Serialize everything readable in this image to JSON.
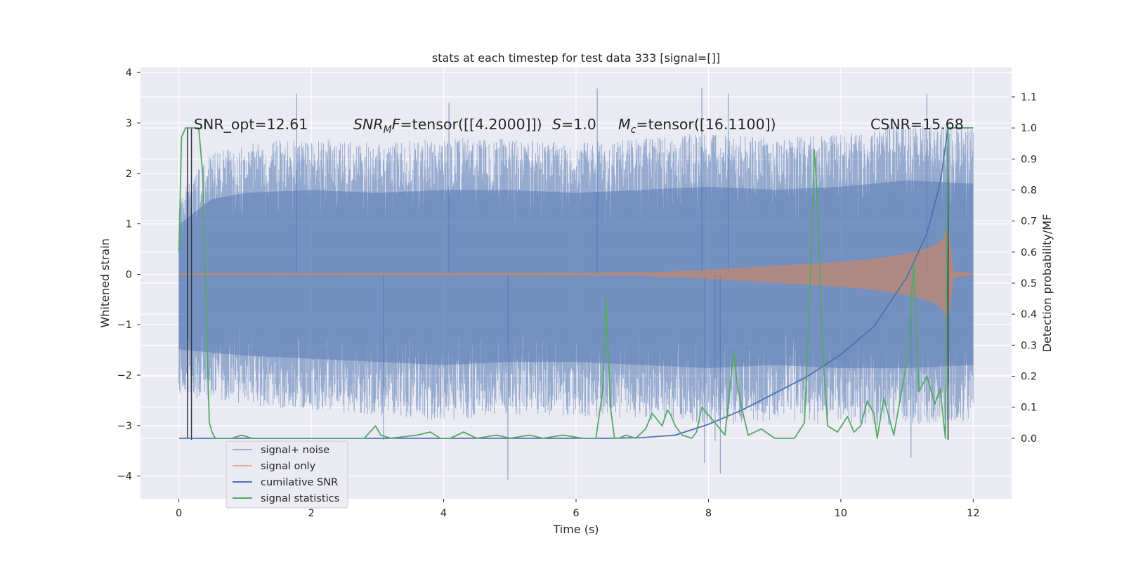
{
  "chart_data": {
    "type": "line",
    "title": "stats at each timestep for test data 333 [signal=[]]",
    "xlabel": "Time (s)",
    "ylabel_left": "Whitened strain",
    "ylabel_right": "Detection probability/MF",
    "xlim": [
      -0.58,
      12.58
    ],
    "ylim_left": [
      -4.45,
      4.1
    ],
    "ylim_right": [
      -0.195,
      1.195
    ],
    "x_ticks": [
      "0",
      "2",
      "4",
      "6",
      "8",
      "10",
      "12"
    ],
    "y_ticks_left": [
      "4",
      "3",
      "2",
      "1",
      "0",
      "−1",
      "−2",
      "−3",
      "−4"
    ],
    "y_ticks_right": [
      "1.1",
      "1.0",
      "0.9",
      "0.8",
      "0.7",
      "0.6",
      "0.5",
      "0.4",
      "0.3",
      "0.2",
      "0.1",
      "0.0"
    ],
    "grid": true,
    "legend_position": "lower-left",
    "annotations": {
      "snr_opt": "SNR_opt=12.61",
      "snr_mf": "SNRₘF=tensor([[4.2000]])",
      "snr_mf_prefix": "SNR",
      "snr_mf_sub": "M",
      "snr_mf_italic": "F",
      "snr_mf_rest": "=tensor([[4.2000]])",
      "s_italic": "S",
      "s_rest": "=1.0",
      "mc_italic": "M",
      "mc_sub": "c",
      "mc_rest": "=tensor([16.1100])",
      "csnr": "CSNR=15.68"
    },
    "series": [
      {
        "name": "signal+ noise",
        "color": "#4c72b0",
        "opacity": 0.5,
        "envelope": {
          "x": [
            0.0,
            0.5,
            1.0,
            2.0,
            3.0,
            4.0,
            5.0,
            6.0,
            7.0,
            8.0,
            9.0,
            10.0,
            11.0,
            12.0
          ],
          "upper": [
            1.6,
            2.4,
            2.6,
            2.7,
            2.6,
            2.7,
            2.7,
            2.6,
            2.7,
            2.8,
            2.7,
            2.8,
            3.0,
            2.9
          ],
          "lower": [
            -2.4,
            -2.5,
            -2.6,
            -2.7,
            -2.8,
            -2.9,
            -2.8,
            -2.8,
            -2.9,
            -3.0,
            -2.9,
            -3.0,
            -3.0,
            -2.9
          ]
        },
        "peaks": [
          [
            4.97,
            -4.07
          ],
          [
            7.9,
            3.7
          ],
          [
            8.3,
            3.58
          ],
          [
            11.3,
            3.58
          ],
          [
            7.94,
            -3.74
          ],
          [
            8.18,
            -3.95
          ],
          [
            11.06,
            -3.64
          ],
          [
            1.78,
            3.58
          ],
          [
            6.32,
            3.68
          ],
          [
            4.08,
            3.4
          ],
          [
            3.09,
            -3.28
          ],
          [
            8.1,
            -3.3
          ]
        ]
      },
      {
        "name": "signal only",
        "color": "#dd8452",
        "opacity": 0.5,
        "chirp_amplitude": {
          "x": [
            0.0,
            6.0,
            7.0,
            7.5,
            8.0,
            8.5,
            9.0,
            9.5,
            10.0,
            10.5,
            11.0,
            11.4,
            11.55,
            11.62,
            11.7,
            12.0
          ],
          "y": [
            0.01,
            0.02,
            0.03,
            0.05,
            0.08,
            0.12,
            0.16,
            0.2,
            0.24,
            0.3,
            0.4,
            0.55,
            0.7,
            0.95,
            0.05,
            0.02
          ]
        }
      },
      {
        "name": "cumilative SNR",
        "color": "#4c72b0",
        "axis": "right",
        "x": [
          0,
          6.5,
          7.0,
          7.5,
          8.0,
          8.5,
          9.0,
          9.5,
          10.0,
          10.5,
          11.0,
          11.3,
          11.5,
          11.62,
          12.0
        ],
        "y": [
          0.0,
          0.0,
          0.002,
          0.01,
          0.045,
          0.09,
          0.145,
          0.2,
          0.27,
          0.36,
          0.52,
          0.66,
          0.82,
          1.0,
          1.0
        ]
      },
      {
        "name": "signal statistics",
        "color": "#55a868",
        "axis": "right",
        "x": [
          0.0,
          0.04,
          0.1,
          0.18,
          0.3,
          0.36,
          0.42,
          0.46,
          0.5,
          0.55,
          0.6,
          0.8,
          0.95,
          1.1,
          1.5,
          2.0,
          2.5,
          2.8,
          2.97,
          3.05,
          3.2,
          3.6,
          3.8,
          3.95,
          4.1,
          4.3,
          4.5,
          4.8,
          5.0,
          5.3,
          5.5,
          5.8,
          6.1,
          6.3,
          6.4,
          6.45,
          6.52,
          6.58,
          6.65,
          6.75,
          6.9,
          7.05,
          7.15,
          7.3,
          7.38,
          7.42,
          7.5,
          7.6,
          7.75,
          7.82,
          7.9,
          8.1,
          8.25,
          8.38,
          8.43,
          8.5,
          8.6,
          8.8,
          9.0,
          9.3,
          9.45,
          9.52,
          9.6,
          9.65,
          9.72,
          9.8,
          9.95,
          10.1,
          10.2,
          10.3,
          10.4,
          10.5,
          10.55,
          10.65,
          10.8,
          10.9,
          11.0,
          11.05,
          11.1,
          11.18,
          11.3,
          11.42,
          11.5,
          11.58,
          11.62,
          11.65,
          12.0
        ],
        "y": [
          0.6,
          0.97,
          1.0,
          1.0,
          1.0,
          0.85,
          0.35,
          0.05,
          0.02,
          0.0,
          0.0,
          0.0,
          0.01,
          0.0,
          0.0,
          0.0,
          0.0,
          0.0,
          0.04,
          0.01,
          0.0,
          0.01,
          0.02,
          0.0,
          0.0,
          0.02,
          0.0,
          0.01,
          0.0,
          0.01,
          0.0,
          0.01,
          0.0,
          0.0,
          0.15,
          0.46,
          0.1,
          0.0,
          0.0,
          0.01,
          0.0,
          0.03,
          0.08,
          0.04,
          0.09,
          0.08,
          0.04,
          0.01,
          0.0,
          0.02,
          0.1,
          0.05,
          0.01,
          0.28,
          0.18,
          0.1,
          0.01,
          0.03,
          0.0,
          0.0,
          0.05,
          0.4,
          0.93,
          0.75,
          0.3,
          0.04,
          0.02,
          0.07,
          0.02,
          0.04,
          0.12,
          0.08,
          0.0,
          0.13,
          0.01,
          0.13,
          0.25,
          0.38,
          0.56,
          0.15,
          0.2,
          0.11,
          0.16,
          0.0,
          1.0,
          1.0,
          1.0
        ]
      }
    ],
    "vertical_lines": [
      {
        "x": 0.13,
        "top": 1.0,
        "bottom": 0.0,
        "color": "#2f3542"
      },
      {
        "x": 0.19,
        "top": 1.0,
        "bottom": -0.005,
        "color": "#2f3542"
      },
      {
        "x": 11.62,
        "top": 1.0,
        "bottom": -0.005,
        "color": "#2f3542"
      }
    ]
  }
}
